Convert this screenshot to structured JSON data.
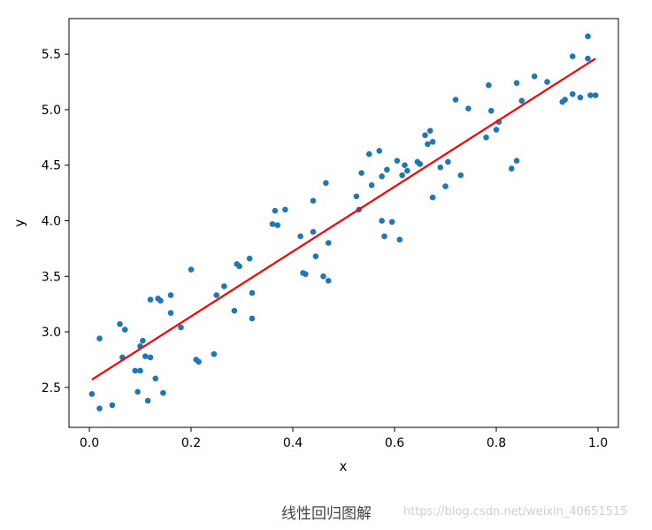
{
  "chart_data": {
    "type": "scatter",
    "xlabel": "x",
    "ylabel": "y",
    "xlim": [
      -0.04,
      1.04
    ],
    "ylim": [
      2.14,
      5.82
    ],
    "xticks": [
      "0.0",
      "0.2",
      "0.4",
      "0.6",
      "0.8",
      "1.0"
    ],
    "yticks": [
      "2.5",
      "3.0",
      "3.5",
      "4.0",
      "4.5",
      "5.0",
      "5.5"
    ],
    "grid": false,
    "legend": "none",
    "colors": {
      "points": "#1f77b4",
      "line": "#ff0000"
    },
    "scatter": {
      "x": [
        0.005,
        0.02,
        0.02,
        0.045,
        0.06,
        0.065,
        0.07,
        0.09,
        0.095,
        0.1,
        0.1,
        0.105,
        0.11,
        0.115,
        0.12,
        0.12,
        0.13,
        0.135,
        0.14,
        0.145,
        0.16,
        0.16,
        0.18,
        0.2,
        0.21,
        0.215,
        0.245,
        0.25,
        0.265,
        0.285,
        0.29,
        0.295,
        0.315,
        0.32,
        0.32,
        0.36,
        0.365,
        0.37,
        0.385,
        0.415,
        0.42,
        0.425,
        0.44,
        0.44,
        0.445,
        0.46,
        0.465,
        0.47,
        0.47,
        0.525,
        0.53,
        0.535,
        0.55,
        0.555,
        0.57,
        0.575,
        0.575,
        0.58,
        0.585,
        0.595,
        0.605,
        0.61,
        0.615,
        0.62,
        0.625,
        0.645,
        0.65,
        0.66,
        0.665,
        0.67,
        0.675,
        0.675,
        0.69,
        0.7,
        0.705,
        0.72,
        0.73,
        0.745,
        0.78,
        0.785,
        0.79,
        0.8,
        0.805,
        0.83,
        0.84,
        0.84,
        0.85,
        0.875,
        0.9,
        0.93,
        0.935,
        0.95,
        0.95,
        0.965,
        0.98,
        0.98,
        0.985,
        0.995
      ],
      "y": [
        2.44,
        2.31,
        2.94,
        2.34,
        3.07,
        2.77,
        3.02,
        2.65,
        2.46,
        2.87,
        2.65,
        2.92,
        2.78,
        2.38,
        2.77,
        3.29,
        2.58,
        3.3,
        3.28,
        2.45,
        3.33,
        3.17,
        3.04,
        3.56,
        2.75,
        2.73,
        2.8,
        3.33,
        3.41,
        3.19,
        3.61,
        3.59,
        3.66,
        3.12,
        3.35,
        3.97,
        4.09,
        3.96,
        4.1,
        3.86,
        3.53,
        3.52,
        4.18,
        3.9,
        3.68,
        3.5,
        4.34,
        3.46,
        3.8,
        4.22,
        4.1,
        4.43,
        4.6,
        4.32,
        4.63,
        4.4,
        4.0,
        3.86,
        4.46,
        3.99,
        4.54,
        3.83,
        4.41,
        4.5,
        4.45,
        4.53,
        4.51,
        4.77,
        4.69,
        4.81,
        4.21,
        4.71,
        4.48,
        4.31,
        4.53,
        5.09,
        4.41,
        5.01,
        4.75,
        5.22,
        4.99,
        4.82,
        4.89,
        4.47,
        4.54,
        5.24,
        5.08,
        5.3,
        5.25,
        5.07,
        5.09,
        5.48,
        5.14,
        5.11,
        5.66,
        5.46,
        5.13,
        5.13
      ]
    },
    "fit_line": {
      "x": [
        0.005,
        0.995
      ],
      "y": [
        2.57,
        5.46
      ]
    }
  },
  "caption": "线性回归图解",
  "watermark": "https://blog.csdn.net/weixin_40651515"
}
